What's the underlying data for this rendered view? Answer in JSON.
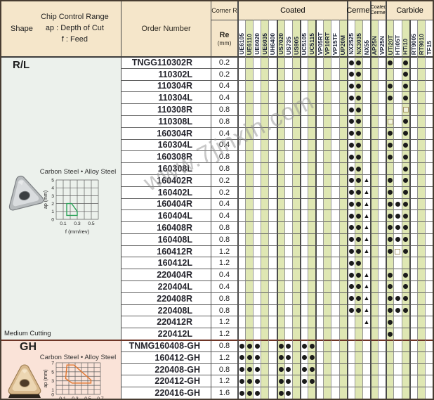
{
  "header": {
    "shape_label": "Shape",
    "chip_control": {
      "line1": "Chip Control Range",
      "line2": "ap : Depth of Cut",
      "line3": "f : Feed"
    },
    "order_number_label": "Order Number",
    "corner_r_label": "Corner R",
    "re_label": "Re",
    "re_unit": "(mm)",
    "groups": [
      {
        "label": "Coated",
        "span": 14
      },
      {
        "label": "Cermet",
        "span": 3
      },
      {
        "label": "Coated",
        "label2": "Cermet",
        "span": 2
      },
      {
        "label": "Carbide",
        "span": 6
      }
    ],
    "grades": [
      "UE6105",
      "UE6110",
      "UE6020",
      "UE6035",
      "UH6400",
      "US7020",
      "US735",
      "US905",
      "UC5105",
      "UC5115",
      "VP05RT",
      "VP10RT",
      "VP15TF",
      "UP20M",
      "NX2525",
      "NX3035",
      "NX55",
      "AP25N",
      "VP25N",
      "UTi20T",
      "HTi05T",
      "HTi10",
      "RT9005",
      "RT9010",
      "TF15"
    ]
  },
  "legend_symbols": {
    "dot": "standard",
    "tri": "triangle mark",
    "sq": "open square mark"
  },
  "watermark": "www.7jinxin.com",
  "colors": {
    "header_bg": "#f5e6ca",
    "stripe": "#dfe7b3",
    "rl_section_bg": "#ecf1ec",
    "gh_section_bg": "#fae3d8",
    "mark": "#1b1b1b",
    "square_outline": "#a59366",
    "gh_divider": "#6e3526",
    "rl_region": "#2ea35a",
    "gh_region": "#e2762e"
  },
  "sections": [
    {
      "label": "R/L",
      "note": "Medium Cutting",
      "chart_title": "Carbon Steel • Alloy Steel",
      "chip_chart": {
        "ylabel": "ap (mm)",
        "xlabel": "f (mm/rev)",
        "x_max": 0.6,
        "y_max": 5,
        "x_step": 0.1,
        "y_step": 1,
        "x_ticks": [
          "0.1",
          "0.3",
          "0.5"
        ],
        "y_ticks": [
          "0",
          "1",
          "2",
          "3",
          "4",
          "5"
        ],
        "region_color": "#2ea35a",
        "region": [
          [
            0.15,
            0.5
          ],
          [
            0.15,
            2
          ],
          [
            0.22,
            2
          ],
          [
            0.3,
            1
          ],
          [
            0.3,
            0.5
          ]
        ]
      },
      "rows": [
        {
          "order": "TNGG110302R",
          "re": "0.2",
          "marks": {
            "NX2525": "dot",
            "NX3035": "dot",
            "UTi20T": "dot",
            "HTi10": "dot"
          }
        },
        {
          "order": "110302L",
          "re": "0.2",
          "marks": {
            "NX2525": "dot",
            "NX3035": "dot",
            "HTi10": "dot"
          }
        },
        {
          "order": "110304R",
          "re": "0.4",
          "marks": {
            "NX2525": "dot",
            "NX3035": "dot",
            "UTi20T": "dot",
            "HTi10": "dot"
          }
        },
        {
          "order": "110304L",
          "re": "0.4",
          "marks": {
            "NX2525": "dot",
            "NX3035": "dot",
            "UTi20T": "dot",
            "HTi10": "dot"
          }
        },
        {
          "order": "110308R",
          "re": "0.8",
          "marks": {
            "NX2525": "dot",
            "NX3035": "dot",
            "HTi10": "sq"
          }
        },
        {
          "order": "110308L",
          "re": "0.8",
          "marks": {
            "NX2525": "dot",
            "NX3035": "dot",
            "UTi20T": "sq",
            "HTi10": "dot"
          }
        },
        {
          "order": "160304R",
          "re": "0.4",
          "marks": {
            "NX2525": "dot",
            "NX3035": "dot",
            "UTi20T": "dot",
            "HTi10": "dot"
          }
        },
        {
          "order": "160304L",
          "re": "0.4",
          "marks": {
            "NX2525": "dot",
            "NX3035": "dot",
            "UTi20T": "dot",
            "HTi10": "dot"
          }
        },
        {
          "order": "160308R",
          "re": "0.8",
          "marks": {
            "NX2525": "dot",
            "NX3035": "dot",
            "UTi20T": "dot",
            "HTi10": "dot"
          }
        },
        {
          "order": "160308L",
          "re": "0.8",
          "marks": {
            "NX2525": "dot",
            "NX3035": "dot",
            "HTi10": "dot"
          }
        },
        {
          "order": "160402R",
          "re": "0.2",
          "marks": {
            "NX2525": "dot",
            "NX3035": "dot",
            "NX55": "tri",
            "UTi20T": "dot",
            "HTi10": "dot"
          }
        },
        {
          "order": "160402L",
          "re": "0.2",
          "marks": {
            "NX2525": "dot",
            "NX3035": "dot",
            "NX55": "tri",
            "UTi20T": "dot",
            "HTi10": "dot"
          }
        },
        {
          "order": "160404R",
          "re": "0.4",
          "marks": {
            "NX2525": "dot",
            "NX3035": "dot",
            "NX55": "tri",
            "UTi20T": "dot",
            "HTi05T": "dot",
            "HTi10": "dot"
          }
        },
        {
          "order": "160404L",
          "re": "0.4",
          "marks": {
            "NX2525": "dot",
            "NX3035": "dot",
            "NX55": "tri",
            "UTi20T": "dot",
            "HTi05T": "dot",
            "HTi10": "dot"
          }
        },
        {
          "order": "160408R",
          "re": "0.8",
          "marks": {
            "NX2525": "dot",
            "NX3035": "dot",
            "NX55": "tri",
            "UTi20T": "dot",
            "HTi05T": "dot",
            "HTi10": "dot"
          }
        },
        {
          "order": "160408L",
          "re": "0.8",
          "marks": {
            "NX2525": "dot",
            "NX3035": "dot",
            "NX55": "tri",
            "UTi20T": "dot",
            "HTi05T": "dot",
            "HTi10": "dot"
          }
        },
        {
          "order": "160412R",
          "re": "1.2",
          "marks": {
            "NX2525": "dot",
            "NX3035": "dot",
            "NX55": "tri",
            "UTi20T": "dot",
            "HTi05T": "sq",
            "HTi10": "dot"
          }
        },
        {
          "order": "160412L",
          "re": "1.2",
          "marks": {
            "NX2525": "dot",
            "NX3035": "dot"
          }
        },
        {
          "order": "220404R",
          "re": "0.4",
          "marks": {
            "NX2525": "dot",
            "NX3035": "dot",
            "NX55": "tri",
            "UTi20T": "dot",
            "HTi10": "dot"
          }
        },
        {
          "order": "220404L",
          "re": "0.4",
          "marks": {
            "NX2525": "dot",
            "NX3035": "dot",
            "NX55": "tri",
            "UTi20T": "dot",
            "HTi10": "dot"
          }
        },
        {
          "order": "220408R",
          "re": "0.8",
          "marks": {
            "NX2525": "dot",
            "NX3035": "dot",
            "NX55": "tri",
            "UTi20T": "dot",
            "HTi05T": "dot",
            "HTi10": "dot"
          }
        },
        {
          "order": "220408L",
          "re": "0.8",
          "marks": {
            "NX2525": "dot",
            "NX3035": "dot",
            "NX55": "tri",
            "UTi20T": "dot",
            "HTi05T": "dot",
            "HTi10": "dot"
          }
        },
        {
          "order": "220412R",
          "re": "1.2",
          "marks": {
            "NX55": "tri",
            "UTi20T": "dot"
          }
        },
        {
          "order": "220412L",
          "re": "1.2",
          "marks": {
            "UTi20T": "dot"
          }
        }
      ]
    },
    {
      "label": "GH",
      "chart_title": "Carbon Steel • Alloy Steel",
      "chip_chart": {
        "ylabel": "ap (mm)",
        "xlabel": "",
        "x_max": 0.7,
        "y_max": 7,
        "x_step": 0.1,
        "y_step": 1,
        "x_ticks": [
          "0.1",
          "0.3",
          "0.5",
          "0.7"
        ],
        "y_ticks": [
          "0",
          "1",
          "3",
          "5",
          "7"
        ],
        "region_color": "#e2762e",
        "region": [
          [
            0.15,
            3.5
          ],
          [
            0.17,
            6.5
          ],
          [
            0.28,
            6.5
          ],
          [
            0.55,
            3.2
          ],
          [
            0.55,
            2.5
          ],
          [
            0.25,
            2.5
          ]
        ]
      },
      "rows": [
        {
          "order": "TNMG160408-GH",
          "re": "0.8",
          "marks": {
            "UE6105": "dot",
            "UE6110": "dot",
            "UE6020": "dot",
            "US7020": "dot",
            "US735": "dot",
            "UC5105": "dot",
            "UC5115": "dot"
          }
        },
        {
          "order": "160412-GH",
          "re": "1.2",
          "marks": {
            "UE6105": "dot",
            "UE6110": "dot",
            "UE6020": "dot",
            "US7020": "dot",
            "US735": "dot",
            "UC5105": "dot",
            "UC5115": "dot"
          }
        },
        {
          "order": "220408-GH",
          "re": "0.8",
          "marks": {
            "UE6105": "dot",
            "UE6110": "dot",
            "UE6020": "dot",
            "US7020": "dot",
            "US735": "dot",
            "UC5105": "dot",
            "UC5115": "dot"
          }
        },
        {
          "order": "220412-GH",
          "re": "1.2",
          "marks": {
            "UE6105": "dot",
            "UE6110": "dot",
            "UE6020": "dot",
            "US7020": "dot",
            "US735": "dot",
            "UC5105": "dot",
            "UC5115": "dot"
          }
        },
        {
          "order": "220416-GH",
          "re": "1.6",
          "marks": {
            "UE6105": "dot",
            "UE6110": "dot",
            "UE6020": "dot",
            "US7020": "dot",
            "US735": "dot"
          }
        }
      ]
    }
  ]
}
